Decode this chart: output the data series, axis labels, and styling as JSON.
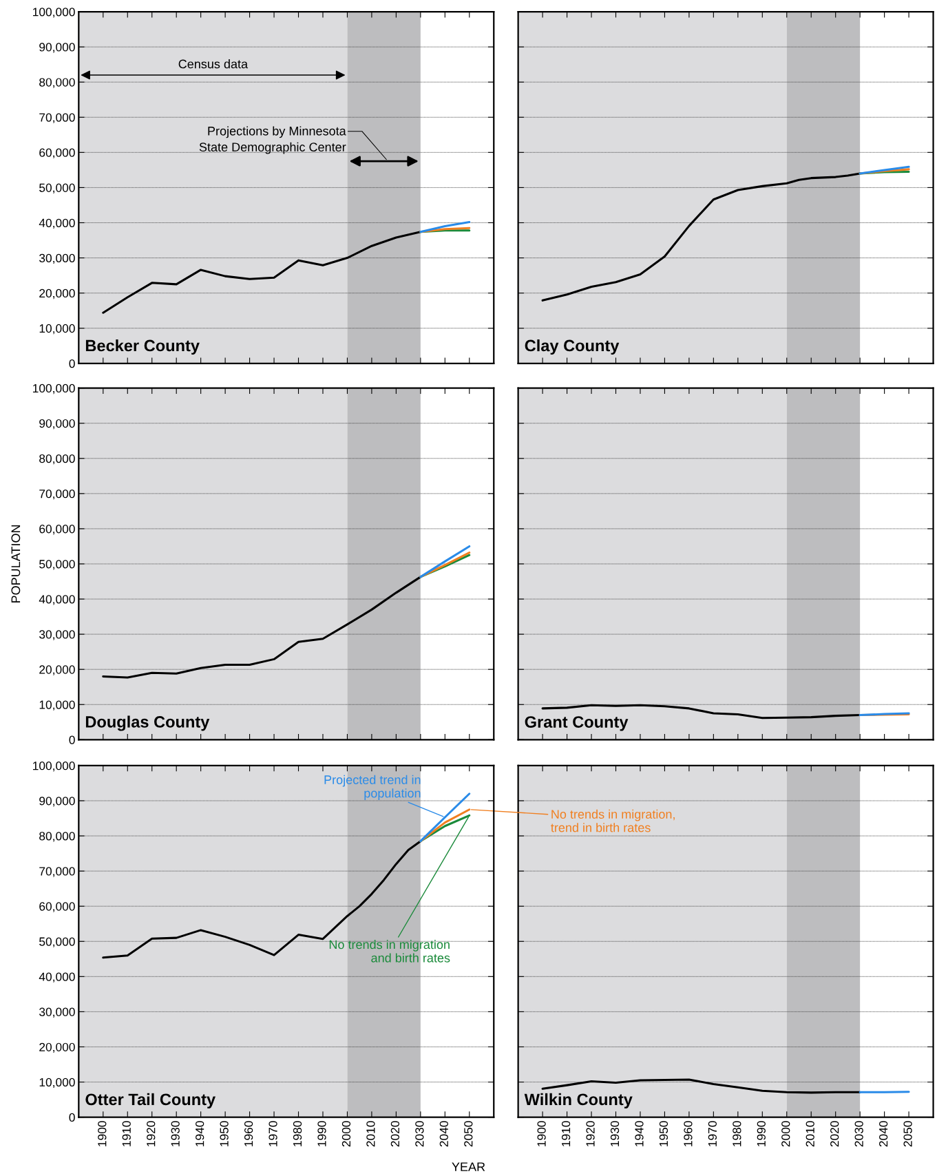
{
  "chart_data": [
    {
      "type": "line",
      "title": "Becker County",
      "xlim": [
        1890,
        2060
      ],
      "xticks": [
        1900,
        1910,
        1920,
        1930,
        1940,
        1950,
        1960,
        1970,
        1980,
        1990,
        2000,
        2010,
        2020,
        2030,
        2040,
        2050
      ],
      "ylim": [
        0,
        100000
      ],
      "yticks": [
        0,
        {
          "value": 10000,
          "label": "10,000"
        },
        {
          "value": 20000,
          "label": "20,000"
        },
        {
          "value": 30000,
          "label": "30,000"
        },
        {
          "value": 40000,
          "label": "40,000"
        },
        {
          "value": 50000,
          "label": "50,000"
        },
        {
          "value": 60000,
          "label": "60,000"
        },
        {
          "value": 70000,
          "label": "70,000"
        },
        {
          "value": 80000,
          "label": "80,000"
        },
        {
          "value": 90000,
          "label": "90,000"
        },
        {
          "value": 100000,
          "label": "100,000"
        }
      ],
      "grid": "y",
      "legend": false,
      "tick_labels": "y",
      "bands": [
        {
          "axis": "x",
          "from": 1890,
          "to": 2000,
          "color": "#dcdcde"
        },
        {
          "axis": "x",
          "from": 2000,
          "to": 2030,
          "color": "#bdbdbf"
        }
      ],
      "annotations": [
        "Census data",
        "Projections by Minnesota\nState Demographic Center"
      ],
      "series": [
        {
          "color": "#000000",
          "x": [
            1900,
            1910,
            1920,
            1930,
            1940,
            1950,
            1960,
            1970,
            1980,
            1990,
            2000,
            2010,
            2020,
            2030
          ],
          "values": [
            14400,
            18800,
            22900,
            22500,
            26600,
            24800,
            24000,
            24400,
            29300,
            27900,
            30000,
            33400,
            35800,
            37400
          ]
        },
        {
          "color": "#1a8a3a",
          "x": [
            2030,
            2040,
            2050
          ],
          "values": [
            37400,
            37800,
            37800
          ]
        },
        {
          "color": "#f07f20",
          "x": [
            2030,
            2040,
            2050
          ],
          "values": [
            37400,
            38200,
            38500
          ]
        },
        {
          "color": "#2a8be8",
          "x": [
            2030,
            2040,
            2050
          ],
          "values": [
            37400,
            39000,
            40200
          ]
        }
      ]
    },
    {
      "type": "line",
      "title": "Clay County",
      "xlim": [
        1890,
        2060
      ],
      "xticks": [
        1900,
        1910,
        1920,
        1930,
        1940,
        1950,
        1960,
        1970,
        1980,
        1990,
        2000,
        2010,
        2020,
        2030,
        2040,
        2050
      ],
      "ylim": [
        0,
        100000
      ],
      "yticks": [
        0,
        {
          "value": 10000,
          "label": null
        },
        {
          "value": 20000,
          "label": null
        },
        {
          "value": 30000,
          "label": null
        },
        {
          "value": 40000,
          "label": null
        },
        {
          "value": 50000,
          "label": null
        },
        {
          "value": 60000,
          "label": null
        },
        {
          "value": 70000,
          "label": null
        },
        {
          "value": 80000,
          "label": null
        },
        {
          "value": 90000,
          "label": null
        },
        {
          "value": 100000,
          "label": null
        }
      ],
      "grid": "y",
      "legend": false,
      "tick_labels": false,
      "bands": [
        {
          "axis": "x",
          "from": 1890,
          "to": 2000,
          "color": "#dcdcde"
        },
        {
          "axis": "x",
          "from": 2000,
          "to": 2030,
          "color": "#bdbdbf"
        }
      ],
      "series": [
        {
          "color": "#000000",
          "x": [
            1900,
            1910,
            1920,
            1930,
            1940,
            1950,
            1960,
            1970,
            1980,
            1990,
            2000,
            2005,
            2010,
            2020,
            2025,
            2030
          ],
          "values": [
            17900,
            19600,
            21800,
            23100,
            25300,
            30400,
            39100,
            46600,
            49300,
            50400,
            51200,
            52200,
            52700,
            53000,
            53400,
            54000
          ]
        },
        {
          "color": "#1a8a3a",
          "x": [
            2030,
            2040,
            2050
          ],
          "values": [
            54000,
            54400,
            54500
          ]
        },
        {
          "color": "#f07f20",
          "x": [
            2030,
            2040,
            2050
          ],
          "values": [
            54000,
            54700,
            55200
          ]
        },
        {
          "color": "#2a8be8",
          "x": [
            2030,
            2040,
            2050
          ],
          "values": [
            54000,
            55000,
            55900
          ]
        }
      ]
    },
    {
      "type": "line",
      "title": "Douglas County",
      "ylabel": "POPULATION",
      "xlim": [
        1890,
        2060
      ],
      "xticks": [
        1900,
        1910,
        1920,
        1930,
        1940,
        1950,
        1960,
        1970,
        1980,
        1990,
        2000,
        2010,
        2020,
        2030,
        2040,
        2050
      ],
      "ylim": [
        0,
        100000
      ],
      "yticks": [
        0,
        {
          "value": 10000,
          "label": "10,000"
        },
        {
          "value": 20000,
          "label": "20,000"
        },
        {
          "value": 30000,
          "label": "30,000"
        },
        {
          "value": 40000,
          "label": "40,000"
        },
        {
          "value": 50000,
          "label": "50,000"
        },
        {
          "value": 60000,
          "label": "60,000"
        },
        {
          "value": 70000,
          "label": "70,000"
        },
        {
          "value": 80000,
          "label": "80,000"
        },
        {
          "value": 90000,
          "label": "90,000"
        },
        {
          "value": 100000,
          "label": "100,000"
        }
      ],
      "grid": "y",
      "legend": false,
      "tick_labels": "y",
      "bands": [
        {
          "axis": "x",
          "from": 1890,
          "to": 2000,
          "color": "#dcdcde"
        },
        {
          "axis": "x",
          "from": 2000,
          "to": 2030,
          "color": "#bdbdbf"
        }
      ],
      "series": [
        {
          "color": "#000000",
          "x": [
            1900,
            1910,
            1920,
            1930,
            1940,
            1950,
            1960,
            1970,
            1980,
            1990,
            2000,
            2010,
            2020,
            2030
          ],
          "values": [
            18000,
            17700,
            19000,
            18800,
            20400,
            21300,
            21300,
            22900,
            27800,
            28700,
            32800,
            37000,
            41800,
            46300
          ]
        },
        {
          "color": "#1a8a3a",
          "x": [
            2030,
            2040,
            2050
          ],
          "values": [
            46300,
            49300,
            52500
          ]
        },
        {
          "color": "#f07f20",
          "x": [
            2030,
            2040,
            2050
          ],
          "values": [
            46300,
            49700,
            53200
          ]
        },
        {
          "color": "#2a8be8",
          "x": [
            2030,
            2040,
            2050
          ],
          "values": [
            46300,
            50700,
            55000
          ]
        }
      ]
    },
    {
      "type": "line",
      "title": "Grant County",
      "xlim": [
        1890,
        2060
      ],
      "xticks": [
        1900,
        1910,
        1920,
        1930,
        1940,
        1950,
        1960,
        1970,
        1980,
        1990,
        2000,
        2010,
        2020,
        2030,
        2040,
        2050
      ],
      "ylim": [
        0,
        100000
      ],
      "yticks": [
        0,
        {
          "value": 10000,
          "label": null
        },
        {
          "value": 20000,
          "label": null
        },
        {
          "value": 30000,
          "label": null
        },
        {
          "value": 40000,
          "label": null
        },
        {
          "value": 50000,
          "label": null
        },
        {
          "value": 60000,
          "label": null
        },
        {
          "value": 70000,
          "label": null
        },
        {
          "value": 80000,
          "label": null
        },
        {
          "value": 90000,
          "label": null
        },
        {
          "value": 100000,
          "label": null
        }
      ],
      "grid": "y",
      "legend": false,
      "tick_labels": false,
      "bands": [
        {
          "axis": "x",
          "from": 1890,
          "to": 2000,
          "color": "#dcdcde"
        },
        {
          "axis": "x",
          "from": 2000,
          "to": 2030,
          "color": "#bdbdbf"
        }
      ],
      "series": [
        {
          "color": "#000000",
          "x": [
            1900,
            1910,
            1920,
            1930,
            1940,
            1950,
            1960,
            1970,
            1980,
            1990,
            2000,
            2010,
            2020,
            2030
          ],
          "values": [
            8900,
            9100,
            9800,
            9600,
            9800,
            9500,
            8900,
            7500,
            7200,
            6200,
            6300,
            6400,
            6800,
            7000
          ]
        },
        {
          "color": "#f07f20",
          "x": [
            2030,
            2040,
            2050
          ],
          "values": [
            7000,
            7100,
            7200
          ]
        },
        {
          "color": "#2a8be8",
          "x": [
            2030,
            2040,
            2050
          ],
          "values": [
            7000,
            7300,
            7500
          ]
        }
      ]
    },
    {
      "type": "line",
      "title": "Otter Tail County",
      "xlabel": "YEAR",
      "xlim": [
        1890,
        2060
      ],
      "xticks": [
        1900,
        1910,
        1920,
        1930,
        1940,
        1950,
        1960,
        1970,
        1980,
        1990,
        2000,
        2010,
        2020,
        2030,
        2040,
        2050
      ],
      "ylim": [
        0,
        100000
      ],
      "yticks": [
        0,
        {
          "value": 10000,
          "label": "10,000"
        },
        {
          "value": 20000,
          "label": "20,000"
        },
        {
          "value": 30000,
          "label": "30,000"
        },
        {
          "value": 40000,
          "label": "40,000"
        },
        {
          "value": 50000,
          "label": "50,000"
        },
        {
          "value": 60000,
          "label": "60,000"
        },
        {
          "value": 70000,
          "label": "70,000"
        },
        {
          "value": 80000,
          "label": "80,000"
        },
        {
          "value": 90000,
          "label": "90,000"
        },
        {
          "value": 100000,
          "label": "100,000"
        }
      ],
      "grid": "y",
      "legend": false,
      "bands": [
        {
          "axis": "x",
          "from": 1890,
          "to": 2000,
          "color": "#dcdcde"
        },
        {
          "axis": "x",
          "from": 2000,
          "to": 2030,
          "color": "#bdbdbf"
        }
      ],
      "series": [
        {
          "color": "#000000",
          "x": [
            1900,
            1910,
            1920,
            1930,
            1940,
            1950,
            1960,
            1970,
            1980,
            1990,
            2000,
            2005,
            2010,
            2015,
            2020,
            2025,
            2030
          ],
          "values": [
            45400,
            46000,
            50800,
            51000,
            53200,
            51300,
            49000,
            46100,
            51900,
            50700,
            57200,
            60000,
            63500,
            67500,
            72000,
            76000,
            78500
          ]
        },
        {
          "name": "No trends in migration\nand birth rates",
          "color": "#1a8a3a",
          "x": [
            2030,
            2040,
            2050
          ],
          "values": [
            78500,
            82800,
            85800
          ]
        },
        {
          "name": "No trends in migration,\ntrend in birth rates",
          "color": "#f07f20",
          "x": [
            2030,
            2040,
            2050
          ],
          "values": [
            78500,
            83800,
            87500
          ]
        },
        {
          "name": "Projected trend in\npopulation",
          "color": "#2a8be8",
          "x": [
            2030,
            2040,
            2050
          ],
          "values": [
            78500,
            85300,
            92000
          ]
        }
      ]
    },
    {
      "type": "line",
      "title": "Wilkin County",
      "xlim": [
        1890,
        2060
      ],
      "xticks": [
        1900,
        1910,
        1920,
        1930,
        1940,
        1950,
        1960,
        1970,
        1980,
        1990,
        2000,
        2010,
        2020,
        2030,
        2040,
        2050
      ],
      "ylim": [
        0,
        100000
      ],
      "yticks": [
        0,
        {
          "value": 10000,
          "label": null
        },
        {
          "value": 20000,
          "label": null
        },
        {
          "value": 30000,
          "label": null
        },
        {
          "value": 40000,
          "label": null
        },
        {
          "value": 50000,
          "label": null
        },
        {
          "value": 60000,
          "label": null
        },
        {
          "value": 70000,
          "label": null
        },
        {
          "value": 80000,
          "label": null
        },
        {
          "value": 90000,
          "label": null
        },
        {
          "value": 100000,
          "label": null
        }
      ],
      "grid": "y",
      "legend": false,
      "tick_labels": "x",
      "bands": [
        {
          "axis": "x",
          "from": 1890,
          "to": 2000,
          "color": "#dcdcde"
        },
        {
          "axis": "x",
          "from": 2000,
          "to": 2030,
          "color": "#bdbdbf"
        }
      ],
      "series": [
        {
          "color": "#000000",
          "x": [
            1900,
            1910,
            1920,
            1930,
            1940,
            1950,
            1960,
            1970,
            1980,
            1990,
            2000,
            2010,
            2020,
            2030
          ],
          "values": [
            8100,
            9100,
            10200,
            9800,
            10500,
            10600,
            10700,
            9400,
            8500,
            7500,
            7100,
            7000,
            7100,
            7100
          ]
        },
        {
          "color": "#2a8be8",
          "x": [
            2030,
            2040,
            2050
          ],
          "values": [
            7100,
            7100,
            7200
          ]
        }
      ]
    }
  ]
}
